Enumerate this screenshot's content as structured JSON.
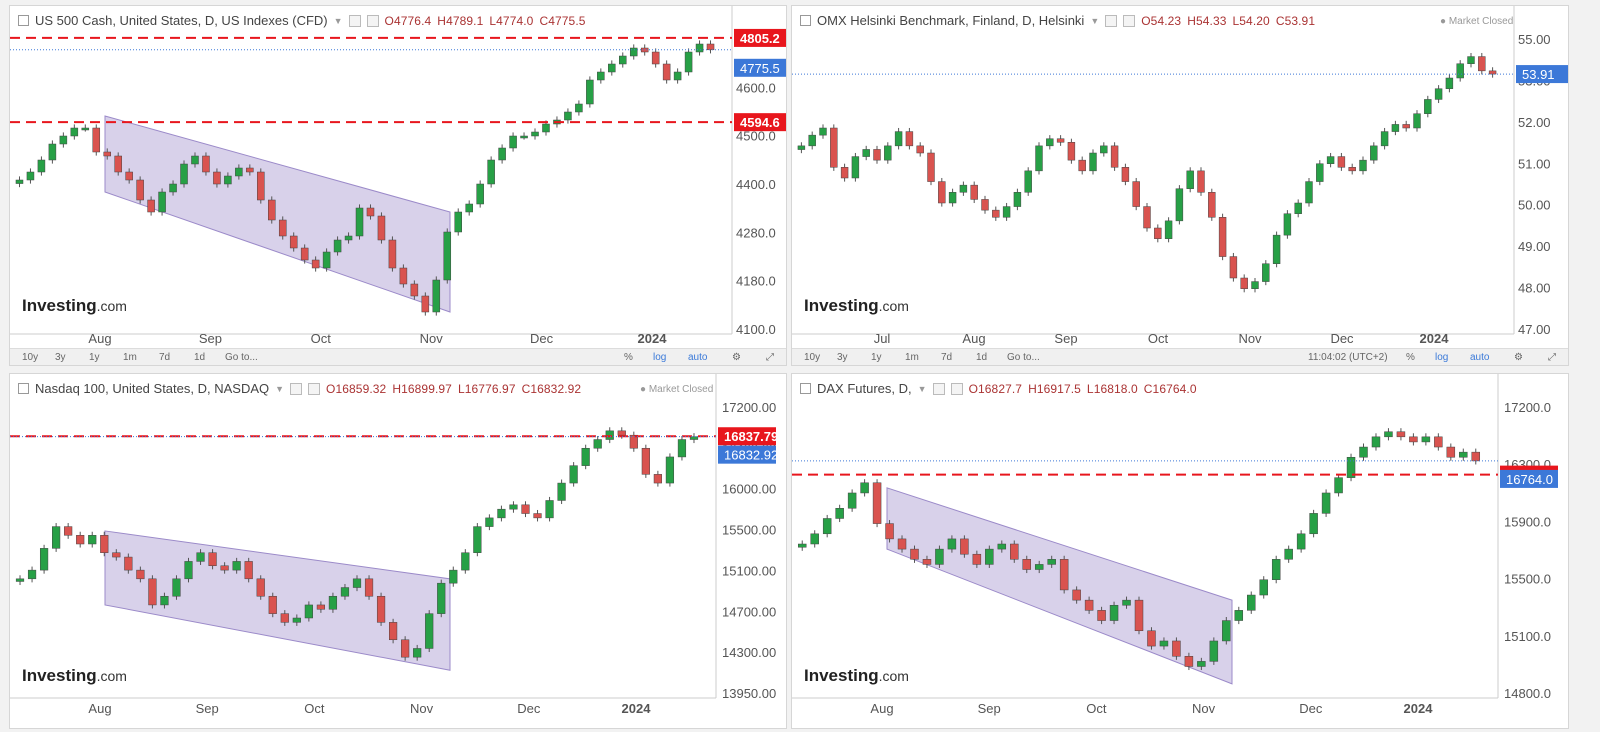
{
  "colors": {
    "up": "#27a046",
    "down": "#d9534f",
    "channel": "#b8acd9",
    "level": "#e8161d",
    "last": "#3c78d8"
  },
  "toolbar": {
    "ranges": [
      "10y",
      "3y",
      "1y",
      "1m",
      "7d",
      "1d",
      "Go to..."
    ],
    "pct": "%",
    "log": "log",
    "auto": "auto",
    "time": "11:04:02 (UTC+2)",
    "gear_icon": "gear-icon",
    "expand_icon": "expand-icon"
  },
  "logo": {
    "main": "Investing",
    "suffix": ".com"
  },
  "panels": [
    {
      "id": "spx",
      "title": "US 500 Cash, United States, D, US Indexes (CFD)",
      "ohlc": {
        "o": "O4776.4",
        "h": "H4789.1",
        "l": "L4774.0",
        "c": "C4775.5"
      },
      "market_closed": "",
      "last": "4775.5",
      "levels": [
        "4805.2",
        "4594.6"
      ],
      "yticks": [
        "4700.0",
        "4600.0",
        "4500.0",
        "4400.0",
        "4280.0",
        "4180.0",
        "4100.0"
      ],
      "xticks": [
        "Aug",
        "Sep",
        "Oct",
        "Nov",
        "Dec",
        "2024"
      ]
    },
    {
      "id": "omx",
      "title": "OMX Helsinki Benchmark, Finland, D, Helsinki",
      "ohlc": {
        "o": "O54.23",
        "h": "H54.33",
        "l": "L54.20",
        "c": "C53.91"
      },
      "market_closed": "● Market Closed",
      "last": "53.91",
      "levels": [],
      "yticks": [
        "55.00",
        "53.00",
        "52.00",
        "51.00",
        "50.00",
        "49.00",
        "48.00",
        "47.00"
      ],
      "xticks": [
        "Jul",
        "Aug",
        "Sep",
        "Oct",
        "Nov",
        "Dec",
        "2024"
      ]
    },
    {
      "id": "ndx",
      "title": "Nasdaq 100, United States, D, NASDAQ",
      "ohlc": {
        "o": "O16859.32",
        "h": "H16899.97",
        "l": "L16776.97",
        "c": "C16832.92"
      },
      "market_closed": "● Market Closed",
      "last": "16832.92",
      "levels": [
        "16837.79"
      ],
      "yticks": [
        "17200.00",
        "16400.00",
        "16000.00",
        "15500.00",
        "15100.00",
        "14700.00",
        "14300.00",
        "13950.00"
      ],
      "xticks": [
        "Aug",
        "Sep",
        "Oct",
        "Nov",
        "Dec",
        "2024"
      ]
    },
    {
      "id": "dax",
      "title": "DAX Futures, D,",
      "ohlc": {
        "o": "O16827.7",
        "h": "H16917.5",
        "l": "L16818.0",
        "c": "C16764.0"
      },
      "market_closed": "",
      "last": "16764.0",
      "levels": [
        "16629.7"
      ],
      "yticks": [
        "17200.0",
        "16300.0",
        "15900.0",
        "15500.0",
        "15100.0",
        "14800.0"
      ],
      "xticks": [
        "Aug",
        "Sep",
        "Oct",
        "Nov",
        "Dec",
        "2024"
      ]
    }
  ],
  "chart_data": [
    {
      "type": "candlestick",
      "title": "US 500 Cash, United States, D, US Indexes (CFD)",
      "x_range": [
        "Jul",
        "Jan"
      ],
      "ylim": [
        4080,
        4830
      ],
      "series": [
        {
          "close": [
            4450,
            4470,
            4500,
            4540,
            4560,
            4580,
            4580,
            4520,
            4510,
            4470,
            4450,
            4400,
            4370,
            4420,
            4440,
            4490,
            4510,
            4470,
            4440,
            4460,
            4480,
            4470,
            4400,
            4350,
            4310,
            4280,
            4250,
            4230,
            4270,
            4300,
            4310,
            4380,
            4360,
            4300,
            4230,
            4190,
            4160,
            4120,
            4200,
            4320,
            4370,
            4390,
            4440,
            4500,
            4530,
            4560,
            4560,
            4570,
            4590,
            4600,
            4620,
            4640,
            4700,
            4720,
            4740,
            4760,
            4780,
            4770,
            4740,
            4700,
            4720,
            4770,
            4790,
            4775.5
          ]
        }
      ],
      "levels": [
        4805.2,
        4594.6
      ],
      "last": 4775.5,
      "channel": {
        "from": "Aug",
        "to": "Nov",
        "upper": [
          4610,
          4370
        ],
        "lower": [
          4420,
          4120
        ]
      }
    },
    {
      "type": "candlestick",
      "title": "OMX Helsinki Benchmark, Finland, D, Helsinki",
      "x_range": [
        "Jul",
        "Jan"
      ],
      "ylim": [
        46.8,
        55.2
      ],
      "series": [
        {
          "close": [
            51.9,
            52.2,
            52.4,
            51.3,
            51.0,
            51.6,
            51.8,
            51.5,
            51.9,
            52.3,
            51.9,
            51.7,
            50.9,
            50.3,
            50.6,
            50.8,
            50.4,
            50.1,
            49.9,
            50.2,
            50.6,
            51.2,
            51.9,
            52.1,
            52.0,
            51.5,
            51.2,
            51.7,
            51.9,
            51.3,
            50.9,
            50.2,
            49.6,
            49.3,
            49.8,
            50.7,
            51.2,
            50.6,
            49.9,
            48.8,
            48.2,
            47.9,
            48.1,
            48.6,
            49.4,
            50.0,
            50.3,
            50.9,
            51.4,
            51.6,
            51.3,
            51.2,
            51.5,
            51.9,
            52.3,
            52.5,
            52.4,
            52.8,
            53.2,
            53.5,
            53.8,
            54.2,
            54.4,
            54.0,
            53.91
          ]
        }
      ],
      "levels": [],
      "last": 53.91
    },
    {
      "type": "candlestick",
      "title": "Nasdaq 100, United States, D, NASDAQ",
      "x_range": [
        "Jul",
        "Jan"
      ],
      "ylim": [
        13900,
        17300
      ],
      "series": [
        {
          "close": [
            15200,
            15300,
            15550,
            15800,
            15700,
            15600,
            15700,
            15500,
            15450,
            15300,
            15200,
            14900,
            15000,
            15200,
            15400,
            15500,
            15350,
            15300,
            15400,
            15200,
            15000,
            14800,
            14700,
            14750,
            14900,
            14850,
            15000,
            15100,
            15200,
            15000,
            14700,
            14500,
            14300,
            14400,
            14800,
            15150,
            15300,
            15500,
            15800,
            15900,
            16000,
            16050,
            15950,
            15900,
            16100,
            16300,
            16500,
            16700,
            16800,
            16900,
            16850,
            16700,
            16400,
            16300,
            16600,
            16800,
            16832.92
          ]
        }
      ],
      "levels": [
        16837.79
      ],
      "last": 16832.92,
      "channel": {
        "from": "Aug",
        "to": "Nov",
        "upper": [
          15750,
          15200
        ],
        "lower": [
          14900,
          14150
        ]
      }
    },
    {
      "type": "candlestick",
      "title": "DAX Futures, D,",
      "x_range": [
        "Jul",
        "Jan"
      ],
      "ylim": [
        14500,
        17400
      ],
      "series": [
        {
          "close": [
            15950,
            16050,
            16200,
            16300,
            16450,
            16550,
            16150,
            16000,
            15900,
            15800,
            15750,
            15900,
            16000,
            15850,
            15750,
            15900,
            15950,
            15800,
            15700,
            15750,
            15800,
            15500,
            15400,
            15300,
            15200,
            15350,
            15400,
            15100,
            14950,
            15000,
            14850,
            14750,
            14800,
            15000,
            15200,
            15300,
            15450,
            15600,
            15800,
            15900,
            16050,
            16250,
            16450,
            16600,
            16800,
            16900,
            17000,
            17050,
            17000,
            16950,
            17000,
            16900,
            16800,
            16850,
            16764
          ]
        }
      ],
      "levels": [
        16629.7
      ],
      "last": 16764.0,
      "channel": {
        "from": "Aug",
        "to": "Nov",
        "upper": [
          16500,
          15400
        ],
        "lower": [
          15900,
          14580
        ]
      }
    }
  ]
}
